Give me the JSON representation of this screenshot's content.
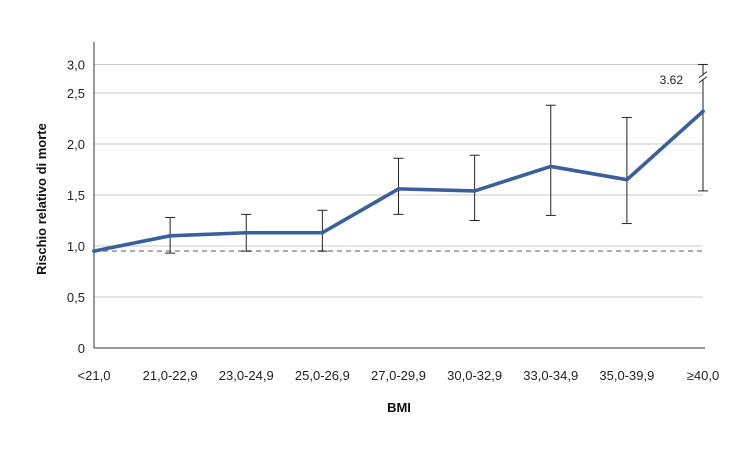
{
  "chart_data": {
    "type": "line",
    "title": "",
    "xlabel": "BMI",
    "ylabel": "Rischio relativo di morte",
    "categories": [
      "<21,0",
      "21,0-22,9",
      "23,0-24,9",
      "25,0-26,9",
      "27,0-29,9",
      "30,0-32,9",
      "33,0-34,9",
      "35,0-39,9",
      "≥40,0"
    ],
    "y_ticks": [
      "0",
      "0,5",
      "1,0",
      "1,5",
      "2,0",
      "2,5",
      "3,0"
    ],
    "ylim": [
      0,
      3.0
    ],
    "grid": true,
    "series": [
      {
        "values": [
          0.95,
          1.1,
          1.13,
          1.13,
          1.56,
          1.54,
          1.78,
          1.65,
          2.32
        ],
        "ci_lower": [
          null,
          0.93,
          0.95,
          0.95,
          1.31,
          1.25,
          1.3,
          1.22,
          1.54
        ],
        "ci_upper": [
          null,
          1.28,
          1.31,
          1.35,
          1.86,
          1.89,
          2.38,
          2.26,
          3.62
        ],
        "color": "#3a5f9c"
      }
    ],
    "reference_line": {
      "y": 0.95,
      "style": "dashed",
      "color": "#999999"
    },
    "annotations": [
      {
        "text": "3.62",
        "category": "≥40,0",
        "note": "axis break"
      }
    ]
  }
}
